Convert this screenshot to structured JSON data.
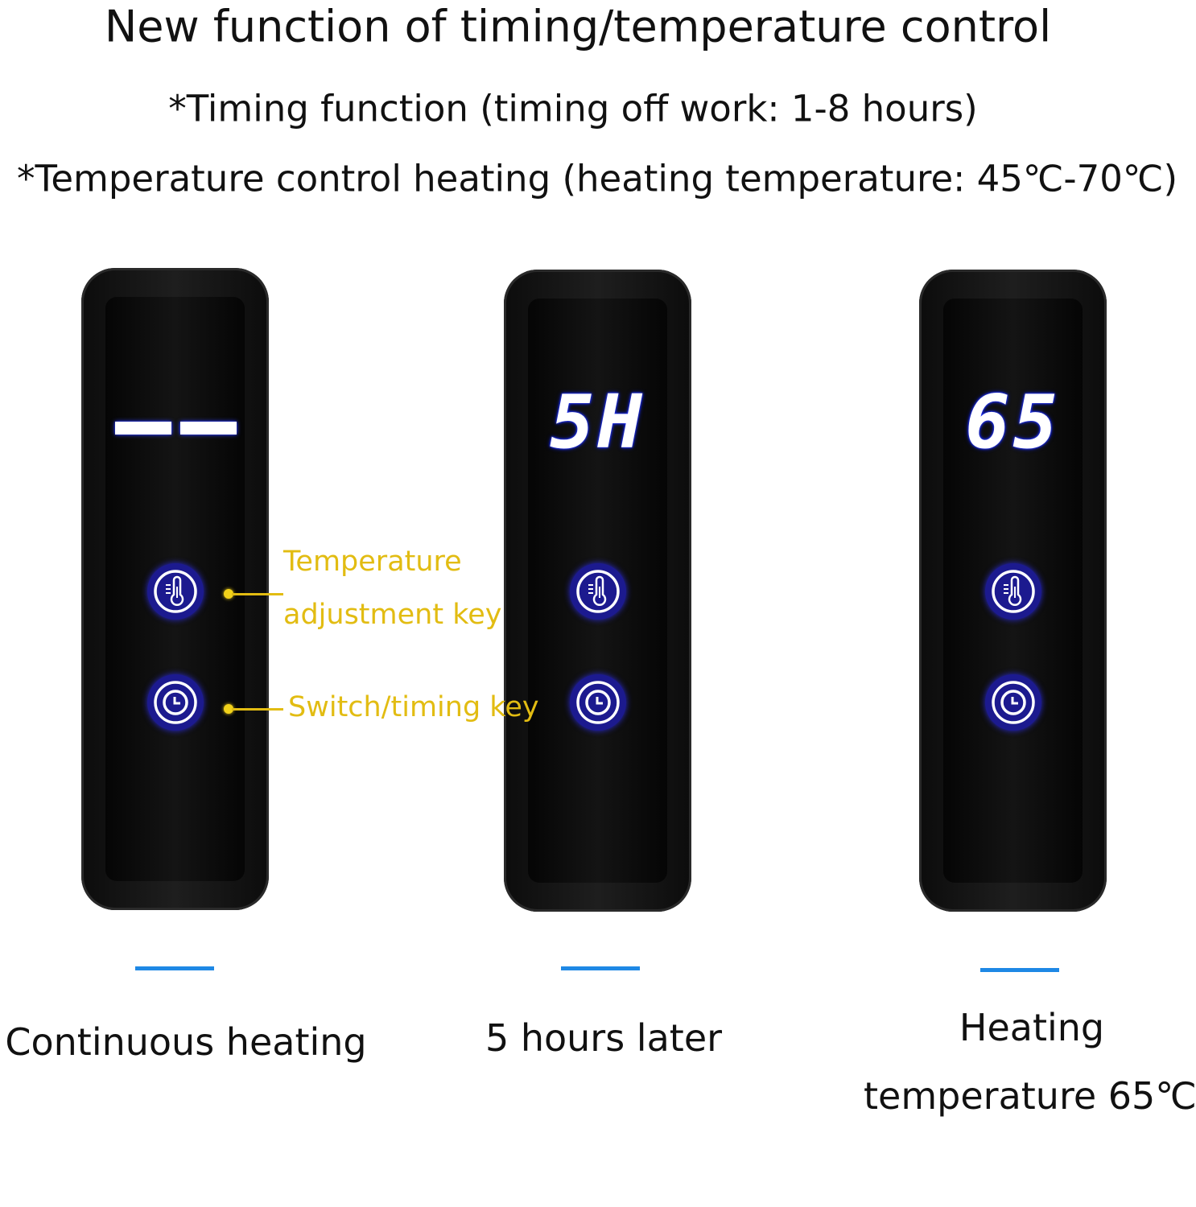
{
  "header": {
    "title": "New function of timing/temperature control",
    "subtitle_timing": "*Timing function (timing off work: 1-8 hours)",
    "subtitle_temperature": "*Temperature control heating (heating temperature: 45℃-70℃)"
  },
  "panels": [
    {
      "display": "--",
      "caption": "Continuous heating"
    },
    {
      "display": "5H",
      "caption": "5 hours later"
    },
    {
      "display": "65",
      "caption_line1": "Heating",
      "caption_line2": "temperature 65℃"
    }
  ],
  "callouts": {
    "temperature_key_line1": "Temperature",
    "temperature_key_line2": "adjustment key",
    "switch_key": "Switch/timing key"
  },
  "colors": {
    "display_glow": "#2233ff",
    "button_fill": "#1c1a8f",
    "callout": "#e2bc12",
    "divider": "#1e88e5"
  },
  "icons": [
    "thermometer-icon",
    "clock-icon"
  ]
}
